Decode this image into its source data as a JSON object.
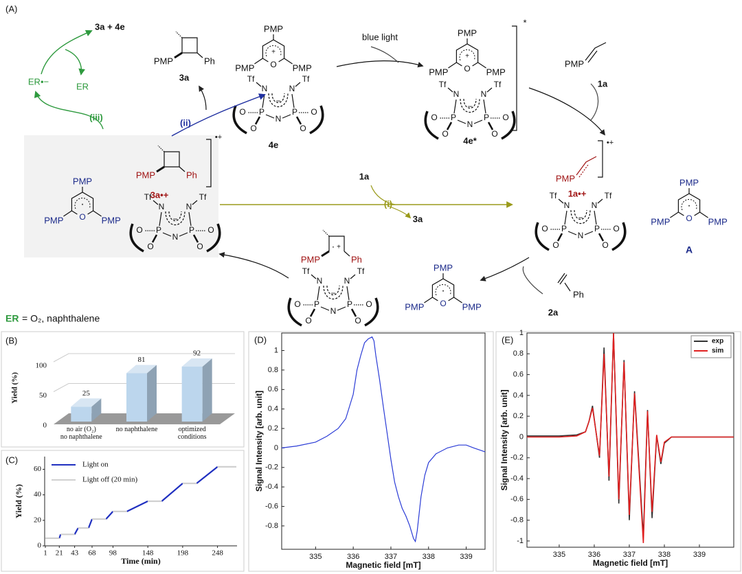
{
  "scheme": {
    "panel": "(A)",
    "atoms": {
      "pmp": "PMP",
      "ph": "Ph",
      "tf": "Tf",
      "n": "N",
      "p": "P",
      "o": "O",
      "plus": "+",
      "minus": "−",
      "dot": "·"
    },
    "labels": {
      "products": "3a + 4e",
      "er_anion": "ER•−",
      "er": "ER",
      "step_iii": "(iii)",
      "step_ii": "(ii)",
      "step_i": "(i)",
      "blue_light": "blue light",
      "c3a": "3a",
      "c4e": "4e",
      "c4e_star": "4e*",
      "excited": "*",
      "c1a": "1a",
      "c1a_cation": "1a•+",
      "c2a": "2a",
      "cA": "A",
      "c3a_cation": "3a•+",
      "radical_cation": "•+",
      "reagent_1a": "1a",
      "product_3a": "3a"
    },
    "legend": {
      "er": "ER",
      "text": "= O₂, naphthalene"
    }
  },
  "chart_data": [
    {
      "type": "bar",
      "panel": "(B)",
      "ylabel": "Yield (%)",
      "categories": [
        "no air (O₂)\nno naphthalene",
        "no naphthalene",
        "optimized\nconditions"
      ],
      "values": [
        25,
        81,
        92
      ],
      "color": "#bcd6ed",
      "ylim": [
        0,
        100
      ],
      "yticks": [
        0,
        50,
        100
      ],
      "grid": true
    },
    {
      "type": "line",
      "panel": "(C)",
      "xlabel": "Time (min)",
      "ylabel": "Yield (%)",
      "xlim": [
        0,
        276
      ],
      "ylim": [
        0,
        70
      ],
      "xticks": [
        1,
        21,
        43,
        68,
        98,
        148,
        198,
        248
      ],
      "yticks": [
        0,
        20,
        40,
        60
      ],
      "legend": "upper left",
      "series": [
        {
          "name": "Light on",
          "color": "#1f2fc0",
          "x": [
            21,
            23,
            null,
            43,
            48,
            null,
            63,
            68,
            null,
            88,
            98,
            null,
            118,
            148,
            null,
            168,
            198,
            null,
            218,
            248
          ],
          "values": [
            6,
            9,
            null,
            9,
            14,
            null,
            14,
            21,
            null,
            21,
            27,
            null,
            27,
            35,
            null,
            35,
            49,
            null,
            49,
            62
          ]
        },
        {
          "name": "Light off (20 min)",
          "color": "#d0d0d0",
          "x": [
            1,
            21,
            null,
            23,
            43,
            null,
            48,
            63,
            null,
            68,
            88,
            null,
            98,
            118,
            null,
            148,
            168,
            null,
            198,
            218,
            null,
            248,
            275
          ],
          "values": [
            6,
            6,
            null,
            9,
            9,
            null,
            14,
            14,
            null,
            21,
            21,
            null,
            27,
            27,
            null,
            35,
            35,
            null,
            49,
            49,
            null,
            62,
            62
          ]
        }
      ]
    },
    {
      "type": "line",
      "panel": "(D)",
      "xlabel": "Magnetic field [mT]",
      "ylabel": "Signal Intensity [arb. unit]",
      "xlim": [
        334.1,
        339.5
      ],
      "ylim": [
        -1.04,
        1.18
      ],
      "xticks": [
        335,
        336,
        337,
        338,
        339
      ],
      "yticks": [
        -0.8,
        -0.6,
        -0.4,
        -0.2,
        0,
        0.2,
        0.4,
        0.6,
        0.8,
        1
      ],
      "color": "#2a3bd6",
      "x": [
        334.1,
        334.5,
        335.0,
        335.3,
        335.6,
        335.8,
        336.0,
        336.1,
        336.2,
        336.3,
        336.4,
        336.5,
        336.55,
        336.6,
        336.7,
        336.8,
        336.9,
        337.0,
        337.1,
        337.2,
        337.3,
        337.4,
        337.5,
        337.6,
        337.65,
        337.7,
        337.8,
        337.9,
        338.0,
        338.2,
        338.5,
        338.8,
        339.0,
        339.2,
        339.5
      ],
      "values": [
        0.0,
        0.02,
        0.06,
        0.12,
        0.2,
        0.3,
        0.55,
        0.8,
        0.95,
        1.08,
        1.12,
        1.14,
        1.1,
        0.95,
        0.7,
        0.42,
        0.15,
        -0.12,
        -0.35,
        -0.5,
        -0.62,
        -0.7,
        -0.8,
        -0.93,
        -0.96,
        -0.85,
        -0.5,
        -0.28,
        -0.15,
        -0.06,
        0.0,
        0.03,
        0.03,
        0.0,
        -0.04
      ]
    },
    {
      "type": "line",
      "panel": "(E)",
      "xlabel": "Magnetic field [mT]",
      "ylabel": "Signal Intensity [arb. unit]",
      "xlim": [
        334.08,
        339.98
      ],
      "ylim": [
        -1.06,
        1
      ],
      "xticks": [
        335,
        336,
        337,
        338,
        339
      ],
      "yticks": [
        -1,
        -0.8,
        -0.6,
        -0.4,
        -0.2,
        0,
        0.2,
        0.4,
        0.6,
        0.8,
        1
      ],
      "legend": "upper right",
      "x": [
        334.08,
        335.0,
        335.5,
        335.75,
        335.85,
        335.95,
        336.05,
        336.15,
        336.28,
        336.42,
        336.55,
        336.7,
        336.85,
        337.0,
        337.15,
        337.4,
        337.52,
        337.65,
        337.78,
        337.9,
        338.0,
        338.2,
        339.0,
        339.98
      ],
      "series": [
        {
          "name": "exp",
          "color": "#333333",
          "values": [
            0.01,
            0.01,
            0.02,
            0.05,
            0.15,
            0.3,
            0.05,
            -0.2,
            0.86,
            -0.42,
            1.0,
            -0.64,
            0.74,
            -0.8,
            0.44,
            -0.96,
            0.26,
            -0.78,
            0.01,
            -0.26,
            -0.06,
            0,
            0,
            0
          ]
        },
        {
          "name": "sim",
          "color": "#e02020",
          "values": [
            0,
            0,
            0.01,
            0.05,
            0.15,
            0.28,
            0.05,
            -0.18,
            0.8,
            -0.38,
            1.0,
            -0.6,
            0.72,
            -0.75,
            0.42,
            -1.02,
            0.25,
            -0.72,
            0.02,
            -0.24,
            -0.05,
            0,
            0,
            0
          ]
        }
      ]
    }
  ]
}
